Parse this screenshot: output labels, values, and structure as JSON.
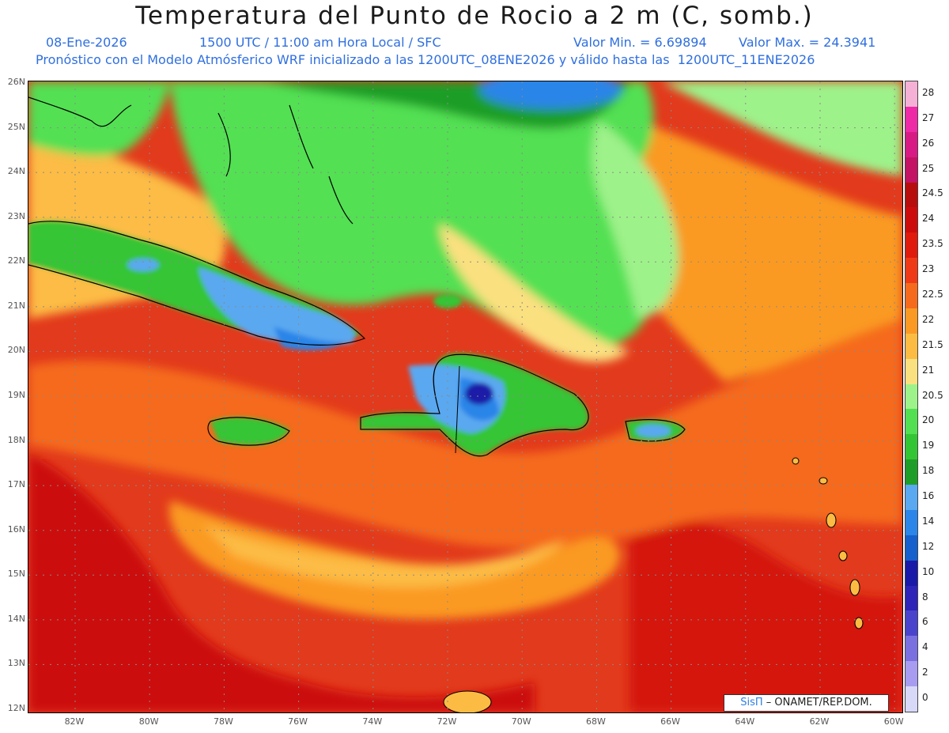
{
  "header": {
    "title": "Temperatura del Punto de Rocio a 2 m (C, somb.)",
    "date": "08-Ene-2026",
    "time": "1500 UTC / 11:00 am Hora Local / SFC",
    "min_label": "Valor Min. = 6.69894",
    "max_label": "Valor Max. = 24.3941",
    "forecast": "Pronóstico con el Modelo Atmósferico WRF inicializado a las 1200UTC_08ENE2026 y válido hasta las  1200UTC_11ENE2026"
  },
  "axes": {
    "lat_labels": [
      "26N",
      "25N",
      "24N",
      "23N",
      "22N",
      "21N",
      "20N",
      "19N",
      "18N",
      "17N",
      "16N",
      "15N",
      "14N",
      "13N",
      "12N"
    ],
    "lon_labels": [
      "82W",
      "80W",
      "78W",
      "76W",
      "74W",
      "72W",
      "70W",
      "68W",
      "66W",
      "64W",
      "62W",
      "60W"
    ]
  },
  "colorbar": {
    "labels": [
      "28",
      "27",
      "26",
      "25",
      "24.5",
      "24",
      "23.5",
      "23",
      "22.5",
      "22",
      "21.5",
      "21",
      "20.5",
      "20",
      "19",
      "18",
      "16",
      "14",
      "12",
      "10",
      "8",
      "6",
      "4",
      "2",
      "0"
    ],
    "colors": [
      "#f5b0d6",
      "#ee2aa6",
      "#d81b84",
      "#c41265",
      "#b80d0d",
      "#cc0c0c",
      "#e01a0c",
      "#ee3a16",
      "#f56a1c",
      "#fa9a24",
      "#fcbc44",
      "#fbe080",
      "#9ef28a",
      "#52e052",
      "#34c534",
      "#1e9e28",
      "#5aa8f0",
      "#2c85e8",
      "#1560cc",
      "#1a1aa8",
      "#2e24b8",
      "#4a44cc",
      "#7a70e0",
      "#a89cf0",
      "#d8d8f8"
    ]
  },
  "credit": {
    "brand": "SisΠ",
    "text": "– ONAMET/REP.DOM."
  },
  "palette": {
    "deep_red": "#cc1010",
    "red": "#e23a1c",
    "orange": "#f56a1c",
    "light_orange": "#fa9a24",
    "yellow": "#fcc452",
    "pale_yellow": "#fbe68a",
    "light_green": "#9ef28a",
    "green": "#52e052",
    "dark_green": "#1e9e28",
    "light_blue": "#5aa8f0",
    "blue": "#2c85e8",
    "dark_blue": "#1a1aa8"
  }
}
